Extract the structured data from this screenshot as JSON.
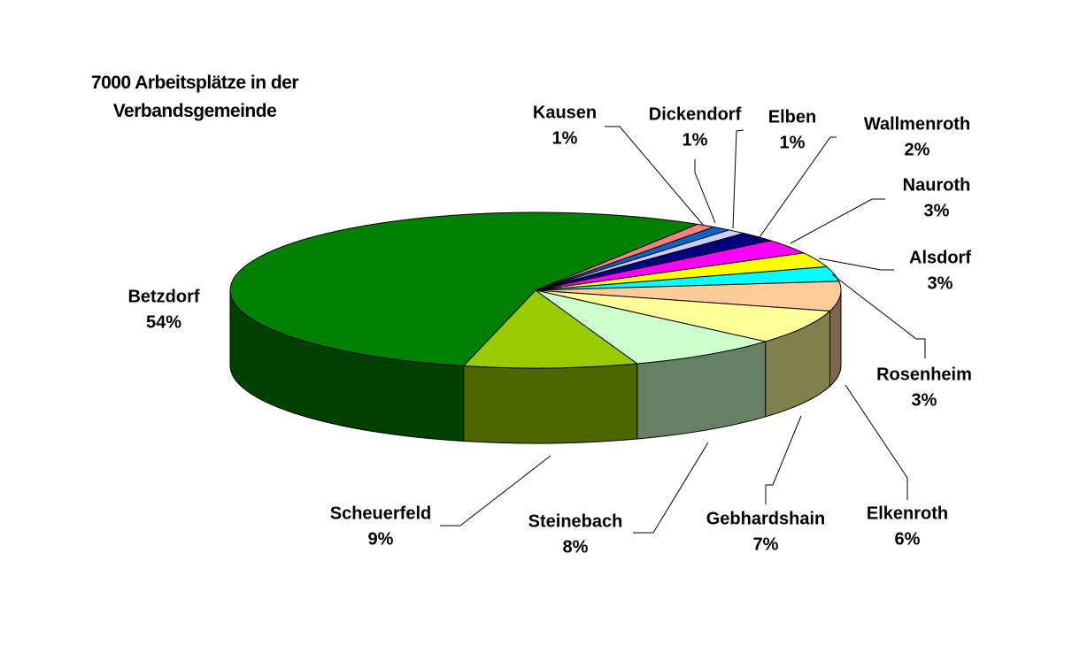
{
  "chart_data": {
    "type": "pie",
    "title": "7000 Arbeitsplätze in der Verbandsgemeinde",
    "categories": [
      "Kausen",
      "Dickendorf",
      "Elben",
      "Wallmenroth",
      "Nauroth",
      "Alsdorf",
      "Rosenheim",
      "Elkenroth",
      "Gebhardshain",
      "Steinebach",
      "Scheuerfeld",
      "Betzdorf"
    ],
    "values": [
      1,
      1,
      1,
      2,
      3,
      3,
      3,
      6,
      7,
      8,
      9,
      54
    ],
    "value_labels": [
      "1%",
      "1%",
      "1%",
      "2%",
      "3%",
      "3%",
      "3%",
      "6%",
      "7%",
      "8%",
      "9%",
      "54%"
    ],
    "colors": [
      "#ff8080",
      "#0066cc",
      "#ccccff",
      "#000080",
      "#ff00ff",
      "#ffff00",
      "#00ffff",
      "#ffcc99",
      "#ffff99",
      "#ccffcc",
      "#99cc00",
      "#008000"
    ]
  }
}
